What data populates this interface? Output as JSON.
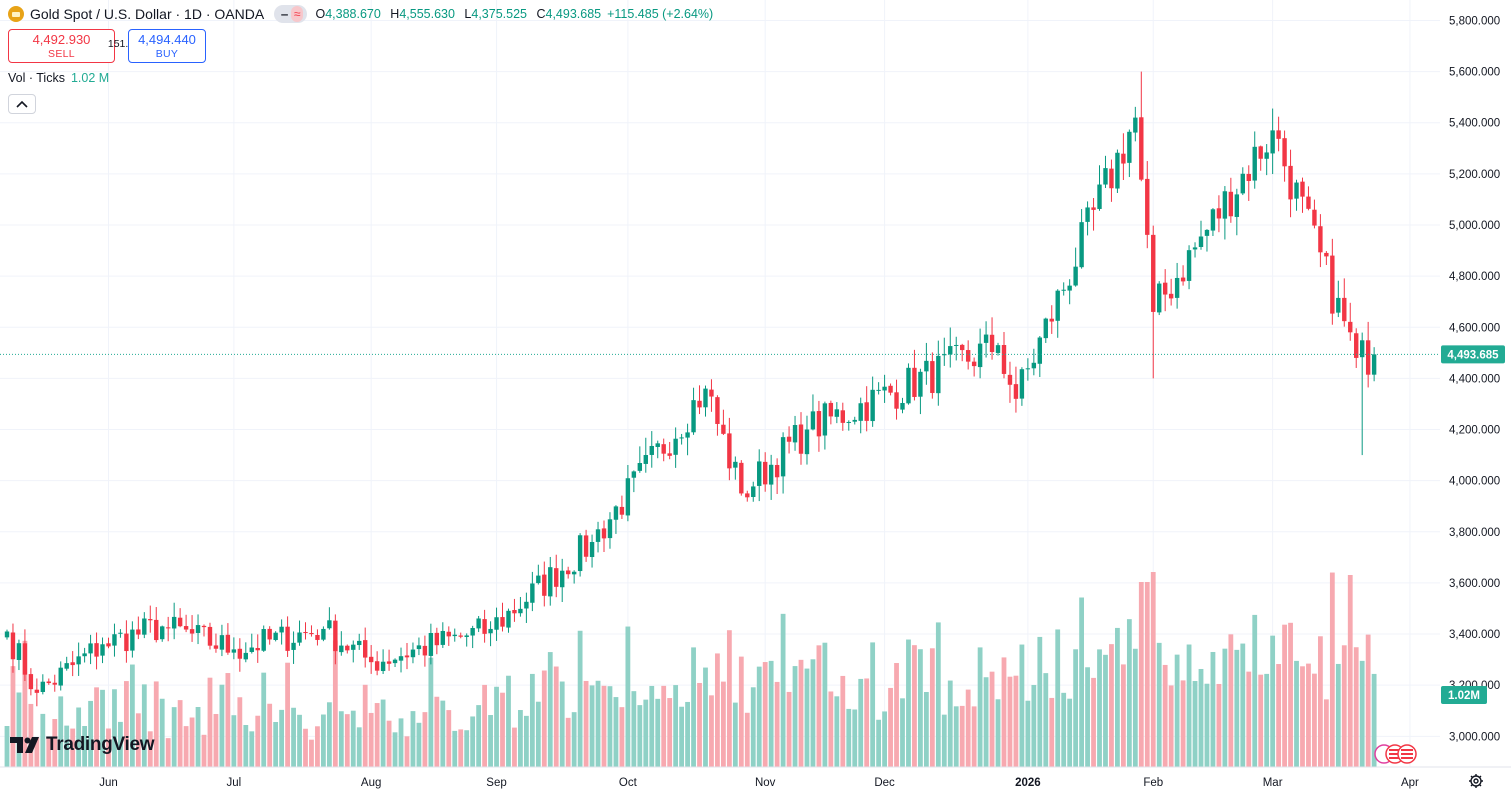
{
  "header": {
    "symbol_title": "Gold Spot / U.S. Dollar · 1D · OANDA",
    "pill_left": "‒",
    "pill_right": "≈",
    "open_label": "O",
    "open_value": "4,388.670",
    "high_label": "H",
    "high_value": "4,555.630",
    "low_label": "L",
    "low_value": "4,375.525",
    "close_label": "C",
    "close_value": "4,493.685",
    "change": "+115.485 (+2.64%)"
  },
  "trade": {
    "sell_price": "4,492.930",
    "sell_label": "SELL",
    "spread": "151.0",
    "buy_price": "4,494.440",
    "buy_label": "BUY"
  },
  "volume": {
    "label": "Vol · Ticks",
    "value": "1.02 M"
  },
  "branding": {
    "logo_text": "TradingView"
  },
  "colors": {
    "up": "#089981",
    "down": "#f23645",
    "vol_up": "#8fd1c6",
    "vol_down": "#f7a9b0",
    "last_price_bg": "#22ab94"
  },
  "icons": [
    "gold-icon",
    "chevron-up-icon",
    "tradingview-logo-icon",
    "gear-icon",
    "us-flag-icon"
  ],
  "chart_data": {
    "type": "candlestick",
    "title": "Gold Spot / U.S. Dollar · 1D · OANDA",
    "x_labels": [
      "Jun",
      "Jul",
      "Aug",
      "Sep",
      "Oct",
      "Nov",
      "Dec",
      "2026",
      "Feb",
      "Mar",
      "Apr"
    ],
    "y_ticks": [
      3000,
      3200,
      3400,
      3600,
      3800,
      4000,
      4200,
      4400,
      4600,
      4800,
      5000,
      5200,
      5400,
      5600,
      5800
    ],
    "y_tick_labels": [
      "3,000.000",
      "3,200.000",
      "3,400.000",
      "3,600.000",
      "3,800.000",
      "4,000.000",
      "4,200.000",
      "4,400.000",
      "4,600.000",
      "4,800.000",
      "5,000.000",
      "5,200.000",
      "5,400.000",
      "5,600.000",
      "5,800.000"
    ],
    "ylim": [
      2880,
      5880
    ],
    "last_price": 4493.685,
    "last_price_label": "4,493.685",
    "volume_last_label": "1.02M",
    "key_closes": [
      {
        "date": "2025-05-08",
        "close": 3410
      },
      {
        "date": "2025-05-15",
        "close": 3170
      },
      {
        "date": "2025-06-01",
        "close": 3360
      },
      {
        "date": "2025-06-13",
        "close": 3430
      },
      {
        "date": "2025-07-01",
        "close": 3340
      },
      {
        "date": "2025-07-22",
        "close": 3420
      },
      {
        "date": "2025-08-01",
        "close": 3290
      },
      {
        "date": "2025-08-31",
        "close": 3420
      },
      {
        "date": "2025-09-23",
        "close": 3760
      },
      {
        "date": "2025-10-20",
        "close": 4360
      },
      {
        "date": "2025-10-28",
        "close": 3950
      },
      {
        "date": "2025-11-12",
        "close": 4200
      },
      {
        "date": "2025-12-26",
        "close": 4530
      },
      {
        "date": "2025-12-31",
        "close": 4320
      },
      {
        "date": "2026-01-28",
        "close": 5420
      },
      {
        "date": "2026-02-02",
        "close": 4660
      },
      {
        "date": "2026-03-02",
        "close": 5370
      },
      {
        "date": "2026-03-20",
        "close": 4480
      },
      {
        "date": "2026-03-25",
        "close": 4494
      }
    ],
    "extremes": {
      "max_high": 5600,
      "max_high_date": "2026-01-29",
      "min_low": 4100,
      "min_low_date": "2026-03-23"
    }
  }
}
